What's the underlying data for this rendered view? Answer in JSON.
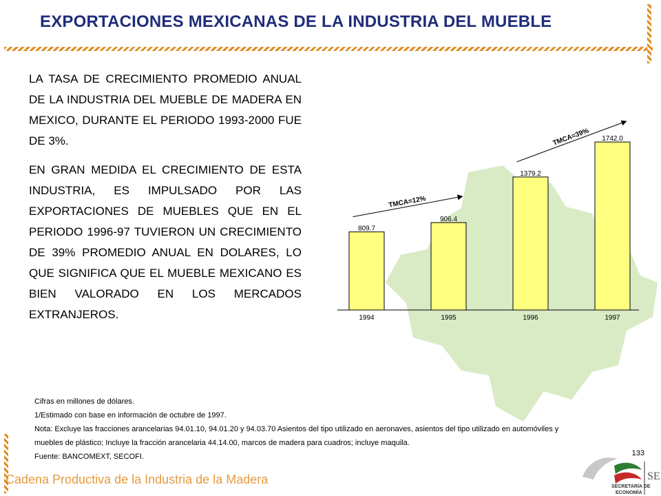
{
  "slide": {
    "title": "EXPORTACIONES MEXICANAS DE LA INDUSTRIA DEL MUEBLE",
    "paragraph1": "LA TASA DE CRECIMIENTO PROMEDIO ANUAL DE LA INDUSTRIA DEL MUEBLE DE MADERA EN MEXICO, DURANTE EL PERIODO 1993-2000 FUE DE 3%.",
    "paragraph2": "EN GRAN MEDIDA EL CRECIMIENTO DE ESTA INDUSTRIA, ES IMPULSADO POR LAS EXPORTACIONES DE MUEBLES QUE EN EL PERIODO 1996-97 TUVIERON UN CRECIMIENTO DE 39% PROMEDIO ANUAL EN DOLARES, LO QUE SIGNIFICA QUE EL MUEBLE MEXICANO ES BIEN VALORADO EN LOS MERCADOS EXTRANJEROS.",
    "notes": [
      "Cifras en millones de dólares.",
      "1/Estimado con base en información de octubre de 1997.",
      "Nota: Excluye las fracciones arancelarias 94.01.10,  94.01.20 y 94.03.70 Asientos del tipo utilizado en aeronaves, asientos del tipo utilizado en automóviles y",
      "muebles de plástico; Incluye la fracción arancelaria  44.14.00, marcos de madera para cuadros; incluye maquila.",
      "Fuente: BANCOMEXT, SECOFI."
    ],
    "page_number": "133",
    "footer": "Cadena Productiva de la Industria de la Madera",
    "logo": {
      "line1": "SECRETARÍA DE",
      "line2": "ECONOMÍA",
      "mark": "SE"
    }
  },
  "colors": {
    "title": "#1f2d7a",
    "accent_hatch": "#e08a1e",
    "bar_fill": "#ffff80",
    "bar_stroke": "#000000",
    "map_fill": "#d9ebc5",
    "footer_text": "#e69a3c"
  },
  "chart_data": {
    "type": "bar",
    "categories": [
      "1994",
      "1995",
      "1996",
      "1997"
    ],
    "values": [
      809.7,
      906.4,
      1379.2,
      1742.0
    ],
    "value_labels": [
      "809.7",
      "906.4",
      "1379.2",
      "1742.0"
    ],
    "ylim": [
      0,
      2000
    ],
    "grid": false,
    "title": "",
    "xlabel": "",
    "ylabel": "",
    "annotations": [
      {
        "text": "TMCA=12%",
        "from_category": "1994",
        "to_category": "1995"
      },
      {
        "text": "TMCA=39%",
        "from_category": "1996",
        "to_category": "1997"
      }
    ]
  }
}
